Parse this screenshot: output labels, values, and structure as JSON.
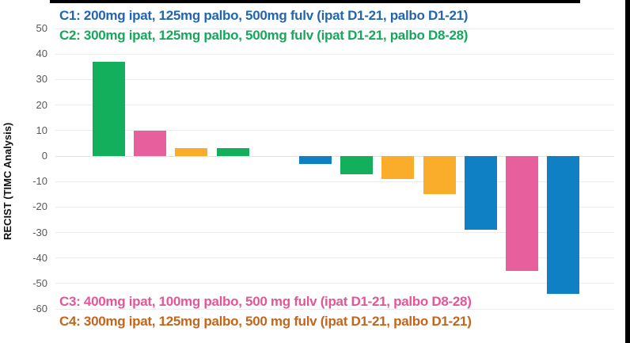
{
  "page": {
    "background": "#ffffff",
    "decor": {
      "top_edge_bar_color": "#000000",
      "right_edge_bar_color": "#000000"
    }
  },
  "chart_data": {
    "type": "bar",
    "subtype": "waterfall",
    "title": "",
    "xlabel": "",
    "ylabel": "RECIST (TIMC Analysis)",
    "ylim": [
      -60,
      50
    ],
    "yticks": [
      50,
      40,
      30,
      20,
      10,
      0,
      -10,
      -20,
      -30,
      -40,
      -50,
      -60
    ],
    "grid": true,
    "background": "#ffffff",
    "gridline_color": "#ececec",
    "tick_label_color": "#595959",
    "bars": [
      {
        "value": 37,
        "cohort": "C2",
        "color": "#14AF5C"
      },
      {
        "value": 10,
        "cohort": "C3",
        "color": "#E7609D"
      },
      {
        "value": 3,
        "cohort": "C4",
        "color": "#FAAD2A"
      },
      {
        "value": 3,
        "cohort": "C2",
        "color": "#14AF5C"
      },
      {
        "value": 0,
        "cohort": null,
        "color": null
      },
      {
        "value": -3,
        "cohort": "C1",
        "color": "#1080C4"
      },
      {
        "value": -7,
        "cohort": "C2",
        "color": "#14AF5C"
      },
      {
        "value": -9,
        "cohort": "C4",
        "color": "#FAAD2A"
      },
      {
        "value": -15,
        "cohort": "C4",
        "color": "#FAAD2A"
      },
      {
        "value": -29,
        "cohort": "C1",
        "color": "#1080C4"
      },
      {
        "value": -45,
        "cohort": "C3",
        "color": "#E7609D"
      },
      {
        "value": -54,
        "cohort": "C1",
        "color": "#1080C4"
      }
    ],
    "legend": {
      "position_top": "top-left",
      "position_bottom": "bottom-left",
      "entries": [
        {
          "id": "C1",
          "label": "C1: 200mg ipat, 125mg palbo, 500mg fulv (ipat D1-21, palbo D1-21)",
          "color": "#2365AF",
          "bar_color": "#1080C4",
          "placement": "top"
        },
        {
          "id": "C2",
          "label": "C2: 300mg ipat, 125mg palbo, 500mg fulv (ipat D1-21, palbo D8-28)",
          "color": "#16A75C",
          "bar_color": "#14AF5C",
          "placement": "top"
        },
        {
          "id": "C3",
          "label": "C3: 400mg ipat, 100mg palbo, 500 mg fulv (ipat D1-21, palbo D8-28)",
          "color": "#E4569A",
          "bar_color": "#E7609D",
          "placement": "bottom"
        },
        {
          "id": "C4",
          "label": "C4: 300mg ipat, 125mg palbo, 500 mg fulv (ipat D1-21, palbo D1-21)",
          "color": "#C2661B",
          "bar_color": "#FAAD2A",
          "placement": "bottom"
        }
      ]
    }
  }
}
